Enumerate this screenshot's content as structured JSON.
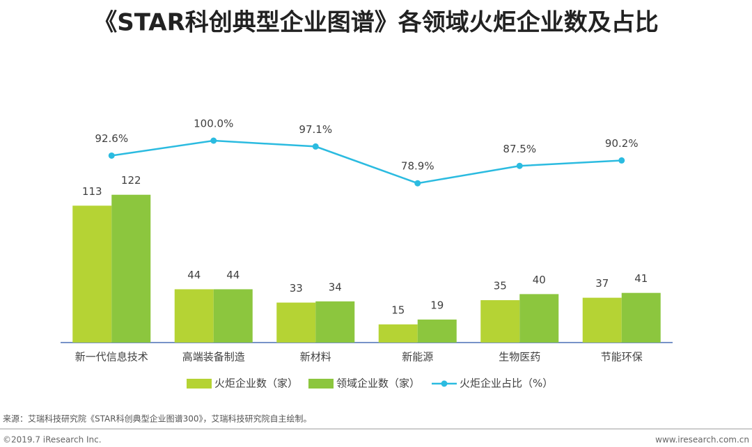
{
  "chart_data": {
    "type": "bar",
    "title": "《STAR科创典型企业图谱》各领域火炬企业数及占比",
    "categories": [
      "新一代信息技术",
      "高端装备制造",
      "新材料",
      "新能源",
      "生物医药",
      "节能环保"
    ],
    "series": [
      {
        "name": "火炬企业数（家）",
        "color": "#b5d334",
        "values": [
          113,
          44,
          33,
          15,
          35,
          37
        ]
      },
      {
        "name": "领域企业数（家）",
        "color": "#8cc63e",
        "values": [
          122,
          44,
          34,
          19,
          40,
          41
        ]
      },
      {
        "name": "火炬企业占比（%）",
        "type": "line",
        "axis": "y2",
        "color": "#2bbbe0",
        "values": [
          92.6,
          100.0,
          97.1,
          78.9,
          87.5,
          90.2
        ],
        "value_labels": [
          "92.6%",
          "100.0%",
          "97.1%",
          "78.9%",
          "87.5%",
          "90.2%"
        ]
      }
    ],
    "ylim": [
      0,
      200
    ],
    "y2lim": [
      0,
      120
    ]
  },
  "source": "来源：艾瑞科技研究院《STAR科创典型企业图谱300》，艾瑞科技研究院自主绘制。",
  "copyright": "©2019.7 iResearch Inc.",
  "website": "www.iresearch.com.cn"
}
